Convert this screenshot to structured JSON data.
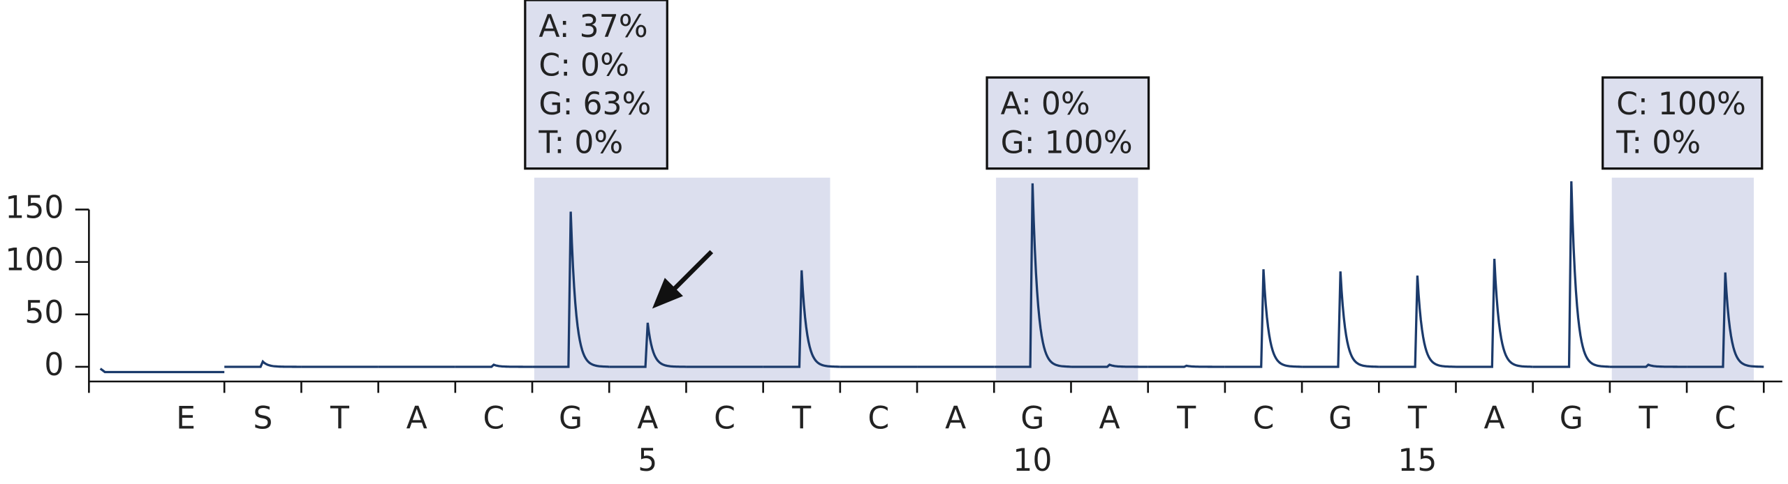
{
  "chart_data": {
    "type": "pyrogram",
    "categories": [
      "E",
      "S",
      "T",
      "A",
      "C",
      "G",
      "A",
      "C",
      "T",
      "C",
      "A",
      "G",
      "A",
      "T",
      "C",
      "G",
      "T",
      "A",
      "G",
      "T",
      "C"
    ],
    "dispensation_numbers": [
      null,
      null,
      null,
      null,
      null,
      null,
      "5",
      null,
      null,
      null,
      null,
      "10",
      null,
      null,
      null,
      null,
      "15",
      null,
      null,
      null,
      null
    ],
    "values": [
      -5,
      5,
      0,
      0,
      2,
      148,
      42,
      0,
      92,
      0,
      0,
      175,
      2,
      1,
      93,
      91,
      87,
      103,
      177,
      2,
      90
    ],
    "color": "#1b3a6b",
    "ylim": [
      -14,
      150
    ],
    "yticks": [
      0,
      50,
      100,
      150
    ],
    "regions": [
      {
        "start": 5,
        "end": 8,
        "labels": [
          "A: 37%",
          "C: 0%",
          "G: 63%",
          "T:  0%"
        ]
      },
      {
        "start": 11,
        "end": 12,
        "labels": [
          "A: 0%",
          "G: 100%"
        ]
      },
      {
        "start": 19,
        "end": 20,
        "labels": [
          "C: 100%",
          "T: 0%"
        ]
      }
    ]
  }
}
